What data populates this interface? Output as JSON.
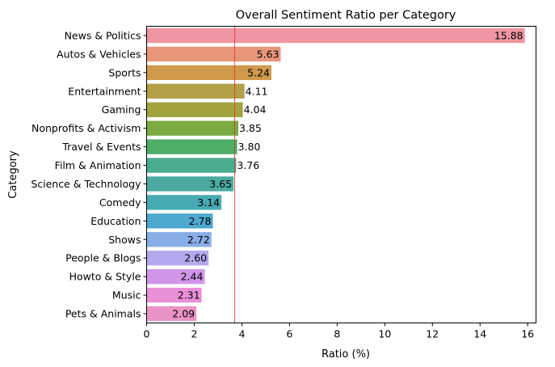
{
  "chart_data": {
    "type": "bar",
    "orientation": "horizontal",
    "title": "Overall Sentiment Ratio per Category",
    "xlabel": "Ratio (%)",
    "ylabel": "Category",
    "xlim": [
      0,
      16.35
    ],
    "xticks": [
      0,
      2,
      4,
      6,
      8,
      10,
      12,
      14,
      16
    ],
    "grid": false,
    "categories": [
      "News & Politics",
      "Autos & Vehicles",
      "Sports",
      "Entertainment",
      "Gaming",
      "Nonprofits & Activism",
      "Travel & Events",
      "Film & Animation",
      "Science & Technology",
      "Comedy",
      "Education",
      "Shows",
      "People & Blogs",
      "Howto & Style",
      "Music",
      "Pets & Animals"
    ],
    "values": [
      15.88,
      5.63,
      5.24,
      4.11,
      4.04,
      3.85,
      3.8,
      3.76,
      3.65,
      3.14,
      2.78,
      2.72,
      2.6,
      2.44,
      2.31,
      2.09
    ],
    "data_labels": [
      "15.88",
      "5.63",
      "5.24",
      "4.11",
      "4.04",
      "3.85",
      "3.80",
      "3.76",
      "3.65",
      "3.14",
      "2.78",
      "2.72",
      "2.60",
      "2.44",
      "2.31",
      "2.09"
    ],
    "label_inside": [
      true,
      true,
      true,
      false,
      false,
      false,
      false,
      false,
      true,
      true,
      true,
      true,
      true,
      true,
      true,
      true
    ],
    "colors": [
      "#ee96a2",
      "#e8967a",
      "#cf9a4c",
      "#b2a04a",
      "#a2a33f",
      "#7aaa40",
      "#4dae66",
      "#4aac8f",
      "#4aaaa0",
      "#47aab2",
      "#4ea8cf",
      "#88aee8",
      "#b5a8ee",
      "#d195e8",
      "#ea8fd9",
      "#ea93c6"
    ],
    "reference_line": {
      "value": 3.7,
      "color": "#e03030",
      "orientation": "vertical"
    }
  }
}
